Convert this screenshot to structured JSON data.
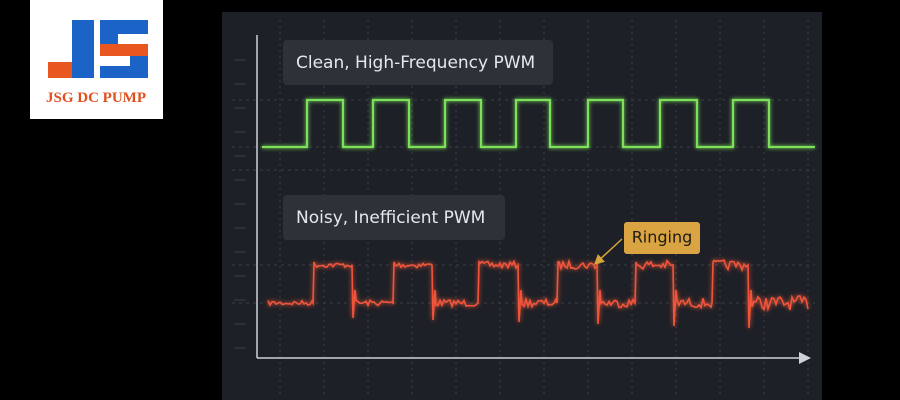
{
  "logo": {
    "text": "JSG DC PUMP"
  },
  "panel": {
    "clean_label": "Clean, High-Frequency PWM",
    "noisy_label": "Noisy, Inefficient PWM",
    "callout": "Ringing"
  }
}
